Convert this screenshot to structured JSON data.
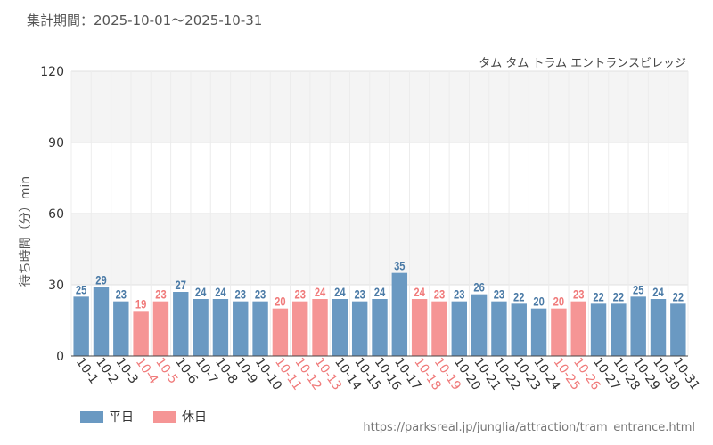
{
  "header": {
    "period_label": "集計期間：2025-10-01～2025-10-31",
    "attraction_name": "タム タム トラム エントランスビレッジ"
  },
  "footer": {
    "source_url": "https://parksreal.jp/junglia/attraction/tram_entrance.html"
  },
  "legend": {
    "weekday_label": "平日",
    "holiday_label": "休日"
  },
  "colors": {
    "weekday": "#6a99c2",
    "holiday": "#f59595",
    "weekday_text": "#4a7aa6",
    "holiday_text": "#f07a7a",
    "band": "#f4f4f4",
    "grid": "#e0e0e0"
  },
  "chart_data": {
    "type": "bar",
    "title": "",
    "xlabel": "",
    "ylabel": "待ち時間（分）min",
    "ylim": [
      0,
      120
    ],
    "yticks": [
      0,
      30,
      60,
      90,
      120
    ],
    "categories": [
      "10-1",
      "10-2",
      "10-3",
      "10-4",
      "10-5",
      "10-6",
      "10-7",
      "10-8",
      "10-9",
      "10-10",
      "10-11",
      "10-12",
      "10-13",
      "10-14",
      "10-15",
      "10-16",
      "10-17",
      "10-18",
      "10-19",
      "10-20",
      "10-21",
      "10-22",
      "10-23",
      "10-24",
      "10-25",
      "10-26",
      "10-27",
      "10-28",
      "10-29",
      "10-30",
      "10-31"
    ],
    "values": [
      25,
      29,
      23,
      19,
      23,
      27,
      24,
      24,
      23,
      23,
      20,
      23,
      24,
      24,
      23,
      24,
      35,
      24,
      23,
      23,
      26,
      23,
      22,
      20,
      20,
      23,
      22,
      22,
      25,
      24,
      22
    ],
    "day_type": [
      "weekday",
      "weekday",
      "weekday",
      "holiday",
      "holiday",
      "weekday",
      "weekday",
      "weekday",
      "weekday",
      "weekday",
      "holiday",
      "holiday",
      "holiday",
      "weekday",
      "weekday",
      "weekday",
      "weekday",
      "holiday",
      "holiday",
      "weekday",
      "weekday",
      "weekday",
      "weekday",
      "weekday",
      "holiday",
      "holiday",
      "weekday",
      "weekday",
      "weekday",
      "weekday",
      "weekday"
    ]
  }
}
